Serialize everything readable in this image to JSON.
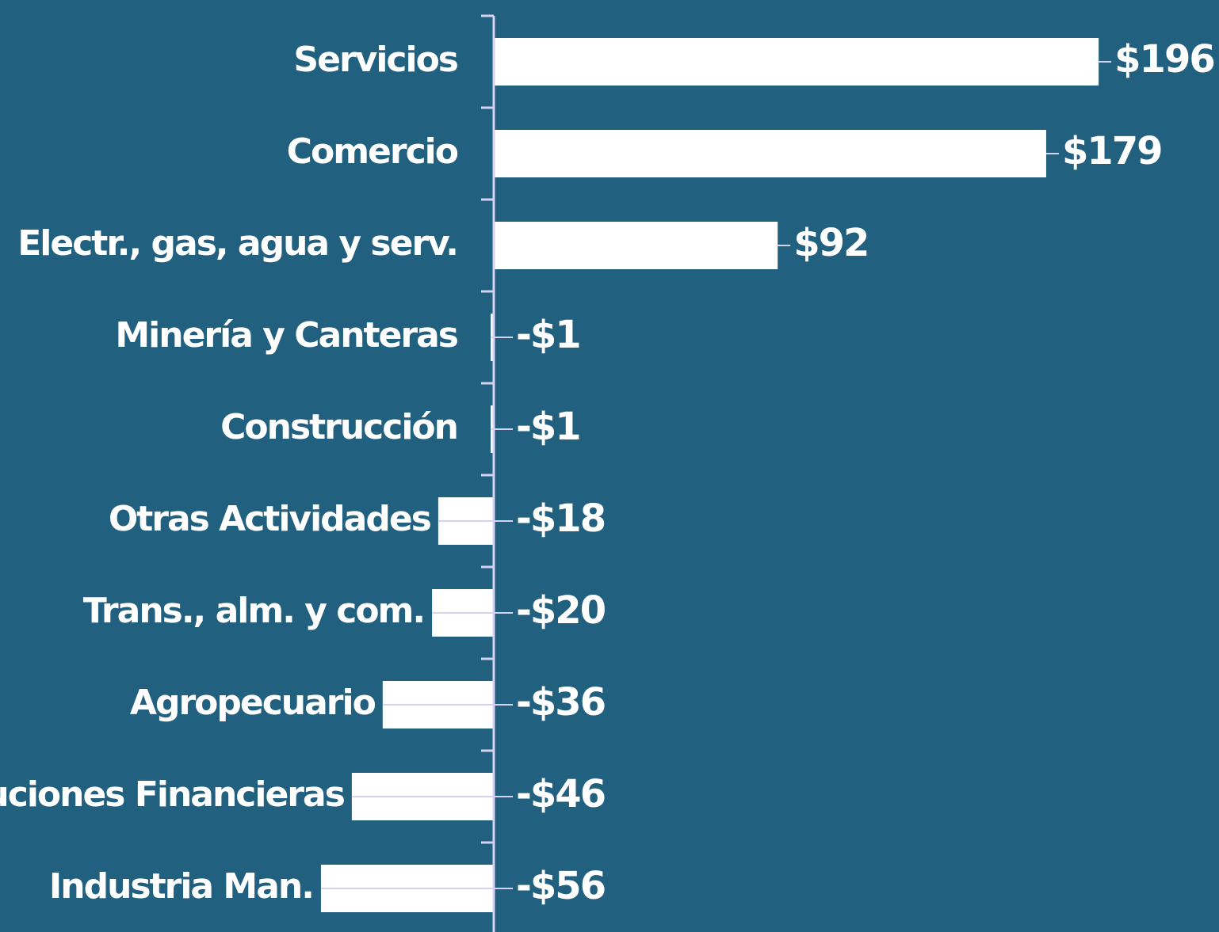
{
  "chart_data": {
    "type": "barh",
    "categories": [
      "Servicios",
      "Comercio",
      "Electr., gas, agua y serv.",
      "Minería y Canteras",
      "Construcción",
      "Otras Actividades",
      "Trans., alm. y com.",
      "Agropecuario",
      "Instituciones Financieras",
      "Industria Man."
    ],
    "values": [
      196,
      179,
      92,
      -1,
      -1,
      -18,
      -20,
      -36,
      -46,
      -56
    ],
    "value_labels": [
      "$196",
      "$179",
      "$92",
      "-$1",
      "-$1",
      "-$18",
      "-$20",
      "-$36",
      "-$46",
      "-$56"
    ],
    "color": "#ffffff",
    "xlim": [
      -160,
      235
    ]
  }
}
